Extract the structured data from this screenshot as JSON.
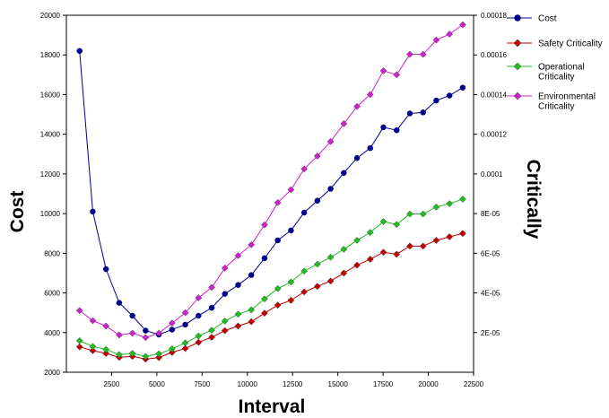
{
  "chart_data": {
    "type": "line",
    "title": "",
    "xlabel": "Interval",
    "ylabel_left": "Cost",
    "ylabel_right": "Critically",
    "xlim": [
      0,
      22500
    ],
    "ylim_left": [
      2000,
      20000
    ],
    "ylim_right": [
      0,
      0.00018
    ],
    "grid": false,
    "legend_position": "right",
    "x_ticks": [
      2500,
      5000,
      7500,
      10000,
      12500,
      15000,
      17500,
      20000,
      22500
    ],
    "x_tick_labels": [
      "2500",
      "5000",
      "7500",
      "10000",
      "12500",
      "15000",
      "17500",
      "20000",
      "22500"
    ],
    "y_left_ticks": [
      2000,
      4000,
      6000,
      8000,
      10000,
      12000,
      14000,
      16000,
      18000,
      20000
    ],
    "y_left_tick_labels": [
      "2000",
      "4000",
      "6000",
      "8000",
      "10000",
      "12000",
      "14000",
      "16000",
      "18000",
      "20000"
    ],
    "y_right_ticks": [
      2e-05,
      4e-05,
      6e-05,
      8e-05,
      0.0001,
      0.00012,
      0.00014,
      0.00016,
      0.00018
    ],
    "y_right_tick_labels": [
      "2E-05",
      "4E-05",
      "6E-05",
      "8E-05",
      "0.0001",
      "0.00012",
      "0.00014",
      "0.00016",
      "0.00018"
    ],
    "x": [
      730,
      1460,
      2190,
      2920,
      3650,
      4380,
      5110,
      5840,
      6570,
      7300,
      8030,
      8760,
      9490,
      10220,
      10950,
      11680,
      12410,
      13140,
      13870,
      14600,
      15330,
      16060,
      16790,
      17520,
      18250,
      18980,
      19710,
      20440,
      21170,
      21900
    ],
    "series": [
      {
        "name": "Cost",
        "axis": "left",
        "color": "#00008b",
        "marker": "circle",
        "values": [
          18200,
          10100,
          7200,
          5500,
          4850,
          4100,
          3900,
          4150,
          4400,
          4850,
          5250,
          5950,
          6400,
          6900,
          7750,
          8650,
          9150,
          10050,
          10650,
          11250,
          12050,
          12800,
          13300,
          14350,
          14200,
          15050,
          15100,
          15700,
          15950,
          16350
        ]
      },
      {
        "name": "Safety Criticality",
        "axis": "right",
        "color": "#c00000",
        "marker": "diamond",
        "values": [
          1.28e-05,
          1.09e-05,
          9.5e-06,
          7.5e-06,
          8e-06,
          6.6e-06,
          7.4e-06,
          1e-05,
          1.2e-05,
          1.51e-05,
          1.76e-05,
          2.1e-05,
          2.33e-05,
          2.55e-05,
          2.98e-05,
          3.38e-05,
          3.63e-05,
          4.05e-05,
          4.33e-05,
          4.6e-05,
          5e-05,
          5.4e-05,
          5.7e-05,
          6.05e-05,
          5.95e-05,
          6.36e-05,
          6.36e-05,
          6.65e-05,
          6.83e-05,
          7e-05
        ]
      },
      {
        "name": "Operational Criticality",
        "axis": "right",
        "color": "#22bb22",
        "marker": "diamond",
        "values": [
          1.59e-05,
          1.3e-05,
          1.15e-05,
          8.9e-06,
          9.5e-06,
          8e-06,
          9.3e-06,
          1.18e-05,
          1.48e-05,
          1.83e-05,
          2.12e-05,
          2.58e-05,
          2.93e-05,
          3.15e-05,
          3.7e-05,
          4.22e-05,
          4.55e-05,
          5.1e-05,
          5.45e-05,
          5.8e-05,
          6.2e-05,
          6.65e-05,
          7.05e-05,
          7.6e-05,
          7.45e-05,
          7.98e-05,
          7.98e-05,
          8.33e-05,
          8.5e-05,
          8.73e-05
        ]
      },
      {
        "name": "Environmental Criticality",
        "axis": "right",
        "color": "#cc22cc",
        "marker": "diamond",
        "values": [
          3.11e-05,
          2.6e-05,
          2.33e-05,
          1.88e-05,
          1.97e-05,
          1.75e-05,
          1.97e-05,
          2.48e-05,
          3e-05,
          3.75e-05,
          4.28e-05,
          5.25e-05,
          5.88e-05,
          6.43e-05,
          7.43e-05,
          8.55e-05,
          9.2e-05,
          0.0001025,
          0.000109,
          0.0001163,
          0.0001253,
          0.000134,
          0.00014,
          0.000152,
          0.00015,
          0.0001603,
          0.0001603,
          0.0001675,
          0.0001705,
          0.0001752
        ]
      }
    ]
  }
}
